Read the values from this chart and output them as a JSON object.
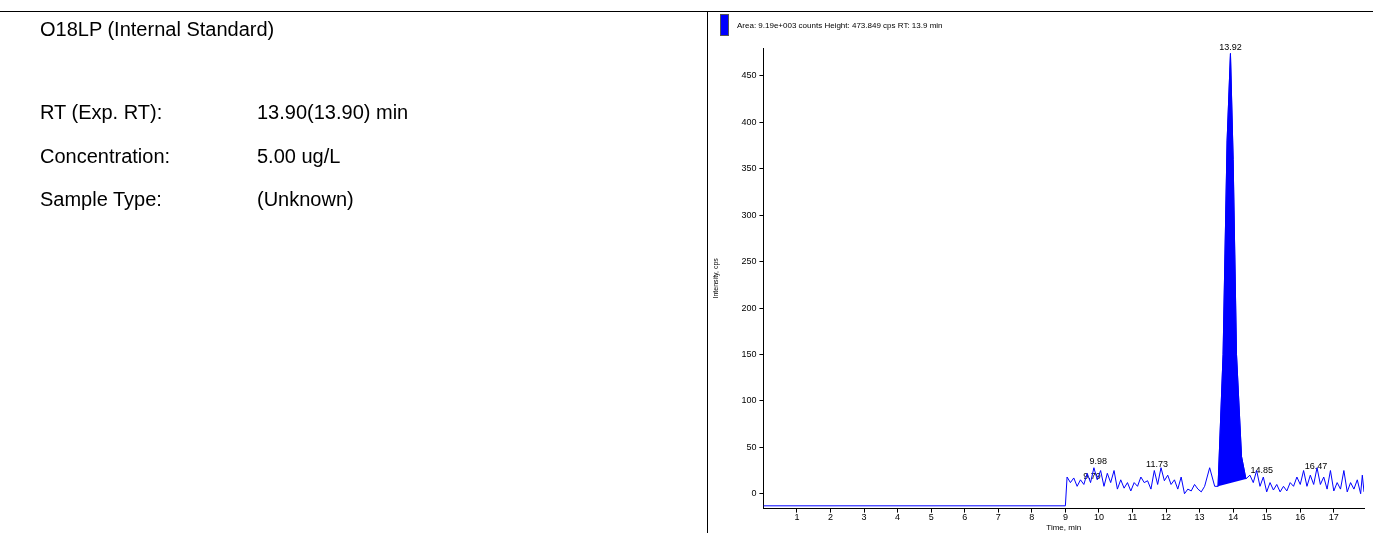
{
  "chart_data": [
    {
      "type": "other",
      "title": "O18LP  (Internal Standard)",
      "annotations": [
        "RT (Exp. RT):",
        "13.90(13.90) min",
        "Concentration:",
        "5.00 ug/L",
        "Sample Type:",
        "(Unknown)"
      ]
    },
    {
      "type": "line",
      "xlabel": "Time, min",
      "ylabel": "Intensity, cps",
      "xlim": [
        0,
        17.9
      ],
      "xticks": [
        1,
        2,
        3,
        4,
        5,
        6,
        7,
        8,
        9,
        10,
        11,
        12,
        13,
        14,
        15,
        16,
        17
      ],
      "ylim": [
        -16,
        480
      ],
      "yticks": [
        0,
        50,
        100,
        150,
        200,
        250,
        300,
        350,
        400,
        450
      ],
      "grid": false,
      "legend": "top left",
      "marker": "none",
      "line_style": "solid",
      "series": [
        {
          "type": "line",
          "color": "#0000ff",
          "x": [
            0,
            9.0,
            9.05,
            9.15,
            9.25,
            9.35,
            9.45,
            9.55,
            9.65,
            9.75,
            9.85,
            9.95,
            10.05,
            10.15,
            10.25,
            10.35,
            10.45,
            10.55,
            10.65,
            10.75,
            10.85,
            10.95,
            11.05,
            11.15,
            11.25,
            11.35,
            11.45,
            11.55,
            11.65,
            11.75,
            11.85,
            11.95,
            12.05,
            12.15,
            12.25,
            12.35,
            12.45,
            12.55,
            12.65,
            12.75,
            12.85,
            12.95,
            13.05,
            13.15,
            13.3,
            13.45,
            13.55,
            13.7,
            13.82,
            13.92,
            14.0,
            14.1,
            14.25,
            14.38,
            14.5,
            14.6,
            14.7,
            14.8,
            14.9,
            15.0,
            15.1,
            15.2,
            15.3,
            15.4,
            15.5,
            15.6,
            15.7,
            15.8,
            15.9,
            16.0,
            16.1,
            16.2,
            16.3,
            16.4,
            16.5,
            16.6,
            16.7,
            16.8,
            16.9,
            17.0,
            17.1,
            17.2,
            17.3,
            17.4,
            17.5,
            17.6,
            17.7,
            17.8,
            17.85,
            17.9
          ],
          "values": [
            -13,
            -13,
            18,
            12,
            17,
            8,
            15,
            10,
            22,
            12,
            28,
            15,
            25,
            8,
            22,
            12,
            25,
            5,
            15,
            6,
            12,
            3,
            12,
            8,
            18,
            12,
            14,
            5,
            25,
            10,
            28,
            14,
            20,
            10,
            15,
            5,
            18,
            0,
            5,
            3,
            10,
            5,
            2,
            8,
            28,
            8,
            8,
            150,
            380,
            474,
            360,
            150,
            40,
            16,
            20,
            12,
            25,
            8,
            18,
            2,
            12,
            4,
            10,
            2,
            8,
            3,
            12,
            8,
            18,
            10,
            25,
            8,
            20,
            10,
            28,
            10,
            18,
            5,
            25,
            3,
            12,
            5,
            25,
            2,
            12,
            5,
            15,
            0,
            20,
            2
          ]
        },
        {
          "type": "area",
          "name": "Area: 9.19e+003 counts Height: 473.849 cps RT: 13.9 min",
          "color": "#0000ff",
          "x": [
            13.55,
            13.7,
            13.82,
            13.92,
            14.0,
            14.1,
            14.25,
            14.38
          ],
          "values": [
            8,
            150,
            380,
            474,
            360,
            150,
            40,
            16
          ]
        }
      ],
      "annotations": [
        {
          "text": "9.79",
          "x": 9.79,
          "y": 12
        },
        {
          "text": "9.98",
          "x": 9.98,
          "y": 28
        },
        {
          "text": "11.73",
          "x": 11.73,
          "y": 25
        },
        {
          "text": "13.92",
          "x": 13.92,
          "y": 474
        },
        {
          "text": "14.85",
          "x": 14.85,
          "y": 18
        },
        {
          "text": "16.47",
          "x": 16.47,
          "y": 22
        }
      ]
    }
  ]
}
